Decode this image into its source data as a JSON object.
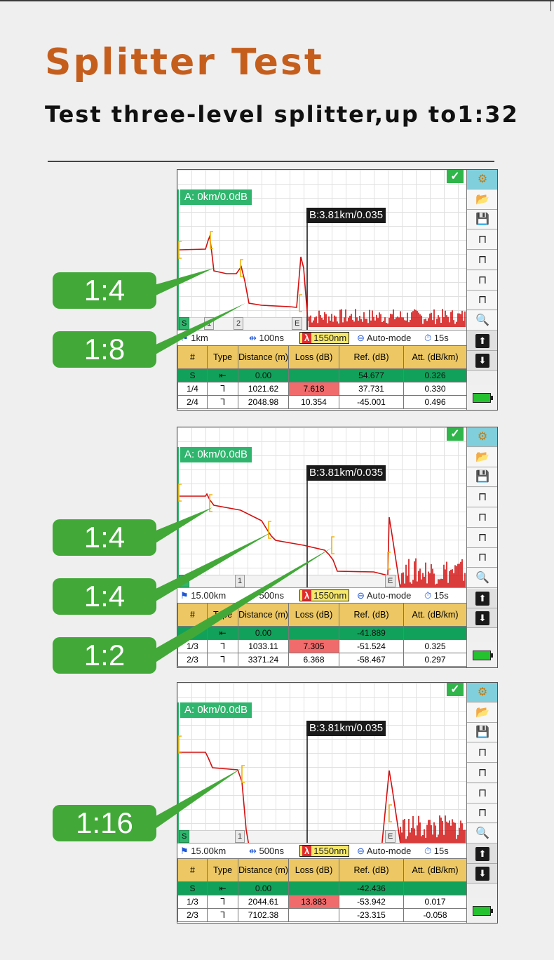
{
  "page": {
    "title": "Splitter Test",
    "subtitle": "Test three-level splitter,up to1:32"
  },
  "screens": [
    {
      "a_label": "A: 0km/0.0dB",
      "b_label": "B:3.81km/0.035",
      "markers": [
        "S",
        "1",
        "2",
        "E"
      ],
      "range": "1km",
      "pulse": "100ns",
      "wavelength": "1550nm",
      "mode": "Auto-mode",
      "time": "15s",
      "headers": [
        "#",
        "Type",
        "Distance (m)",
        "Loss (dB)",
        "Ref. (dB)",
        "Att. (dB/km)"
      ],
      "rows": [
        [
          "S",
          "⇤",
          "0.00",
          "",
          "54.677",
          "0.326"
        ],
        [
          "1/4",
          "ᒣ",
          "1021.62",
          "7.618",
          "37.731",
          "0.330"
        ],
        [
          "2/4",
          "ᒣ",
          "2048.98",
          "10.354",
          "-45.001",
          "0.496"
        ]
      ]
    },
    {
      "a_label": "A: 0km/0.0dB",
      "b_label": "B:3.81km/0.035",
      "markers": [
        "S",
        "1",
        "E"
      ],
      "range": "15.00km",
      "pulse": "500ns",
      "wavelength": "1550nm",
      "mode": "Auto-mode",
      "time": "15s",
      "headers": [
        "#",
        "Type",
        "Distance (m)",
        "Loss (dB)",
        "Ref. (dB)",
        "Att. (dB/km)"
      ],
      "rows": [
        [
          "S",
          "⇤",
          "0.00",
          "",
          "-41.889",
          ""
        ],
        [
          "1/3",
          "ᒣ",
          "1033.11",
          "7.305",
          "-51.524",
          "0.325"
        ],
        [
          "2/3",
          "ᒣ",
          "3371.24",
          "6.368",
          "-58.467",
          "0.297"
        ]
      ]
    },
    {
      "a_label": "A: 0km/0.0dB",
      "b_label": "B:3.81km/0.035",
      "markers": [
        "S",
        "1",
        "E"
      ],
      "range": "15.00km",
      "pulse": "500ns",
      "wavelength": "1550nm",
      "mode": "Auto-mode",
      "time": "15s",
      "headers": [
        "#",
        "Type",
        "Distance (m)",
        "Loss (dB)",
        "Ref. (dB)",
        "Att. (dB/km)"
      ],
      "rows": [
        [
          "S",
          "⇤",
          "0.00",
          "",
          "-42.436",
          ""
        ],
        [
          "1/3",
          "ᒣ",
          "2044.61",
          "13.883",
          "-53.942",
          "0.017"
        ],
        [
          "2/3",
          "ᒣ",
          "7102.38",
          "",
          "-23.315",
          "-0.058"
        ]
      ]
    }
  ],
  "callouts": [
    {
      "label": "1:4",
      "screen": 0
    },
    {
      "label": "1:8",
      "screen": 0
    },
    {
      "label": "1:4",
      "screen": 1
    },
    {
      "label": "1:4",
      "screen": 1
    },
    {
      "label": "1:2",
      "screen": 1
    },
    {
      "label": "1:16",
      "screen": 2
    }
  ],
  "colors": {
    "title": "#c55e1d",
    "callout": "#42a938",
    "trace": "#d40f0f",
    "event_marker": "#f2b40c",
    "a_label": "#2fb56d",
    "loss_highlight": "#f06c6c"
  },
  "sidebar_icons": [
    "gear-icon",
    "folder-icon",
    "save-icon",
    "pulse-widen-icon",
    "pulse-narrow-icon",
    "scale-vertical-icon",
    "scale-step-icon",
    "zoom-icon",
    "arrow-up-icon",
    "arrow-down-icon",
    "battery-icon"
  ]
}
